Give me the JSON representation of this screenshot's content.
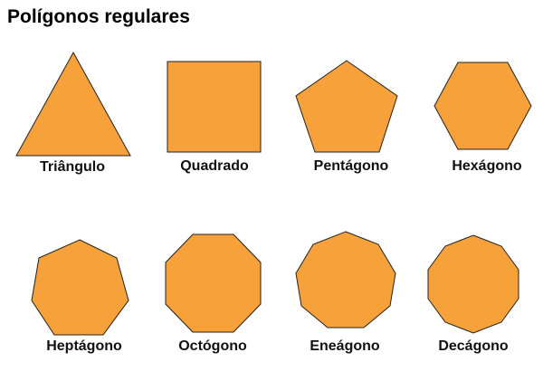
{
  "title": "Polígonos regulares",
  "fill_color": "#F6A13A",
  "stroke_color": "#222222",
  "shapes": [
    {
      "name": "Triângulo",
      "sides": 3
    },
    {
      "name": "Quadrado",
      "sides": 4
    },
    {
      "name": "Pentágono",
      "sides": 5
    },
    {
      "name": "Hexágono",
      "sides": 6
    },
    {
      "name": "Heptágono",
      "sides": 7
    },
    {
      "name": "Octógono",
      "sides": 8
    },
    {
      "name": "Eneágono",
      "sides": 9
    },
    {
      "name": "Decágono",
      "sides": 10
    }
  ]
}
